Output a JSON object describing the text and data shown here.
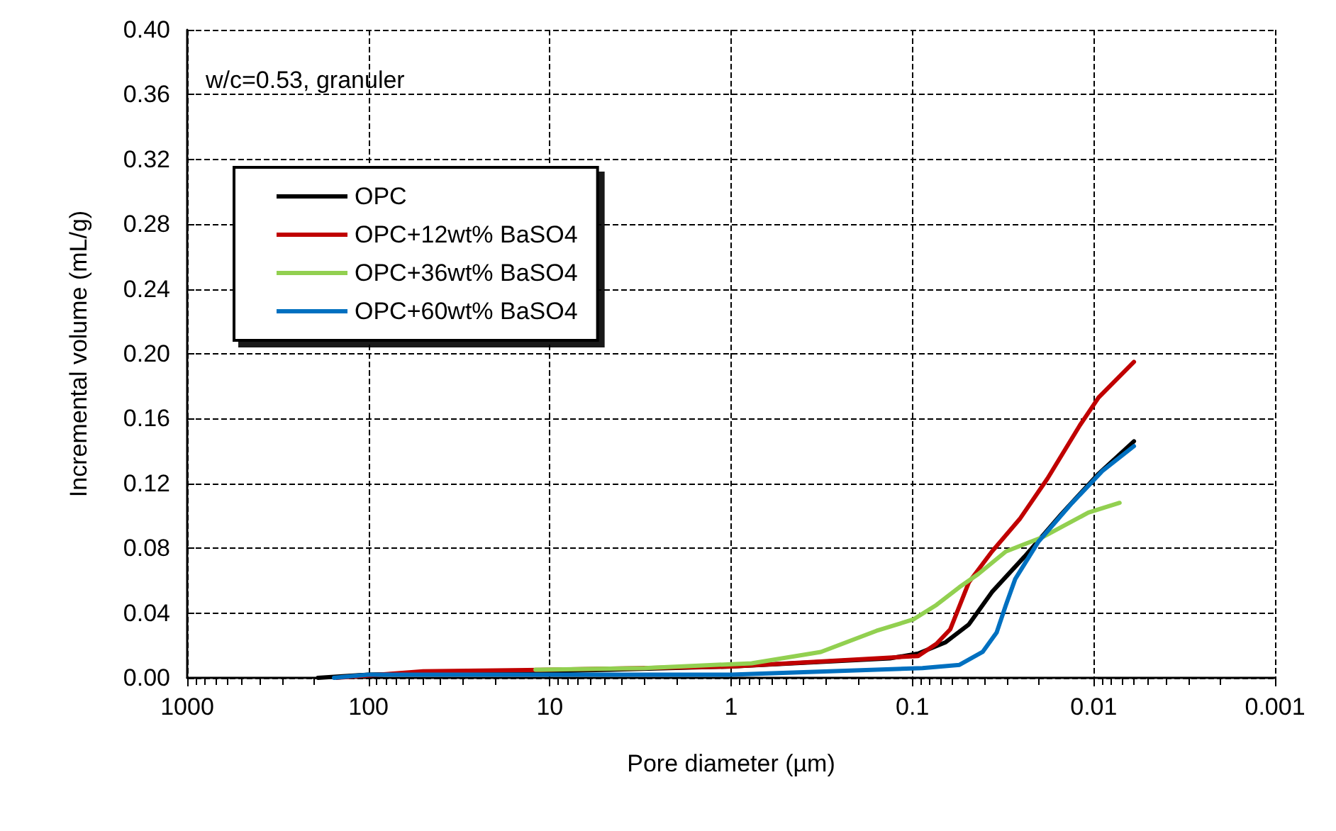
{
  "chart_data": {
    "type": "line",
    "xlabel": "Pore diameter (µm)",
    "ylabel": "Incremental volume (mL/g)",
    "annotations": [
      "w/c=0.53, granuler"
    ],
    "log": "x",
    "xlim": [
      1000,
      0.001
    ],
    "xticks": [
      1000,
      100,
      10,
      1,
      0.1,
      0.01,
      0.001
    ],
    "ylim": [
      0,
      0.4
    ],
    "yticks": [
      {
        "value": 0,
        "label": "0.00"
      },
      {
        "value": 0.04,
        "label": "0.04"
      },
      {
        "value": 0.08,
        "label": "0.08"
      },
      {
        "value": 0.12,
        "label": "0.12"
      },
      {
        "value": 0.16,
        "label": "0.16"
      },
      {
        "value": 0.2,
        "label": "0.20"
      },
      {
        "value": 0.24,
        "label": "0.24"
      },
      {
        "value": 0.28,
        "label": "0.28"
      },
      {
        "value": 0.32,
        "label": "0.32"
      },
      {
        "value": 0.36,
        "label": "0.36"
      },
      {
        "value": 0.4,
        "label": "0.40"
      }
    ],
    "grid": true,
    "legend": "top left",
    "marker": "none",
    "line_style": "solid",
    "series": [
      {
        "name": "OPC",
        "color": "#000000",
        "x": [
          190,
          100,
          10,
          1,
          0.133,
          0.093,
          0.0655,
          0.0488,
          0.0364,
          0.024,
          0.0151,
          0.0094,
          0.006
        ],
        "values": [
          0,
          0.002,
          0.004,
          0.007,
          0.012,
          0.015,
          0.022,
          0.033,
          0.053,
          0.075,
          0.101,
          0.126,
          0.146
        ]
      },
      {
        "name": "OPC+12wt% BaSO4",
        "color": "#c00000",
        "x": [
          150,
          50,
          10,
          1,
          0.093,
          0.0737,
          0.0618,
          0.0488,
          0.0364,
          0.0256,
          0.018,
          0.0119,
          0.0094,
          0.006
        ],
        "values": [
          0,
          0.004,
          0.005,
          0.007,
          0.0135,
          0.021,
          0.03,
          0.059,
          0.078,
          0.098,
          0.123,
          0.156,
          0.173,
          0.195
        ]
      },
      {
        "name": "OPC+36wt% BaSO4",
        "color": "#92d050",
        "x": [
          12,
          3,
          0.77,
          0.32,
          0.158,
          0.099,
          0.0737,
          0.055,
          0.0434,
          0.0305,
          0.019,
          0.0107,
          0.0072
        ],
        "values": [
          0.005,
          0.006,
          0.009,
          0.016,
          0.029,
          0.036,
          0.045,
          0.056,
          0.064,
          0.078,
          0.087,
          0.102,
          0.108
        ]
      },
      {
        "name": "OPC+60wt% BaSO4",
        "color": "#0070c0",
        "x": [
          155,
          100,
          10,
          1,
          0.088,
          0.055,
          0.041,
          0.0343,
          0.0305,
          0.0271,
          0.0202,
          0.0134,
          0.0089,
          0.006
        ],
        "values": [
          0,
          0.002,
          0.002,
          0.002,
          0.006,
          0.008,
          0.016,
          0.028,
          0.045,
          0.061,
          0.084,
          0.107,
          0.128,
          0.143
        ]
      }
    ]
  }
}
